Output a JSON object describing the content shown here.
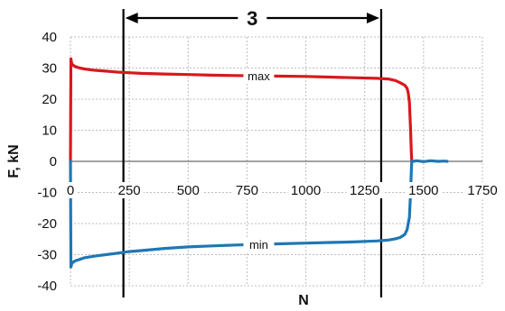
{
  "chart_data": {
    "type": "line",
    "xlabel": "N",
    "ylabel": "F, kN",
    "xlim": [
      0,
      1750
    ],
    "ylim": [
      -40,
      40
    ],
    "xticks": [
      "0",
      "250",
      "500",
      "750",
      "1000",
      "1250",
      "1500",
      "1750"
    ],
    "yticks": [
      "40",
      "30",
      "20",
      "10",
      "0",
      "-10",
      "-20",
      "-30",
      "-40"
    ],
    "grid": true,
    "series": [
      {
        "name": "max",
        "color": "#d7191c",
        "x": [
          0,
          2,
          5,
          10,
          20,
          40,
          60,
          100,
          150,
          200,
          250,
          300,
          400,
          500,
          600,
          700,
          800,
          900,
          1000,
          1100,
          1200,
          1300,
          1350,
          1380,
          1400,
          1420,
          1430,
          1435,
          1440,
          1445,
          1448,
          1450
        ],
        "y": [
          0,
          33,
          31.5,
          31,
          30.5,
          30,
          29.7,
          29.3,
          29,
          28.7,
          28.5,
          28.3,
          28.1,
          27.9,
          27.7,
          27.6,
          27.5,
          27.4,
          27.3,
          27.1,
          26.9,
          26.7,
          26.5,
          26,
          25.3,
          24.5,
          23.5,
          22,
          19,
          10,
          3,
          0
        ]
      },
      {
        "name": "min",
        "color": "#1f77b4",
        "x": [
          0,
          2,
          5,
          10,
          20,
          40,
          60,
          100,
          150,
          200,
          250,
          300,
          400,
          500,
          600,
          700,
          800,
          900,
          1000,
          1100,
          1200,
          1300,
          1350,
          1380,
          1400,
          1420,
          1430,
          1440,
          1445,
          1448,
          1450,
          1455,
          1470,
          1500,
          1530,
          1560,
          1590,
          1600
        ],
        "y": [
          0,
          -34,
          -33,
          -32.5,
          -32,
          -31.5,
          -31,
          -30.5,
          -30,
          -29.5,
          -29,
          -28.7,
          -28,
          -27.5,
          -27.2,
          -26.9,
          -26.7,
          -26.5,
          -26.3,
          -26.1,
          -25.9,
          -25.6,
          -25.3,
          -24.9,
          -24.5,
          -23.5,
          -22,
          -18,
          -10,
          -3,
          0,
          0,
          0.2,
          -0.1,
          0.2,
          0,
          0.1,
          0
        ]
      }
    ],
    "annotations": {
      "stage_label": "3",
      "stage_x_start": 225,
      "stage_x_end": 1320
    }
  }
}
